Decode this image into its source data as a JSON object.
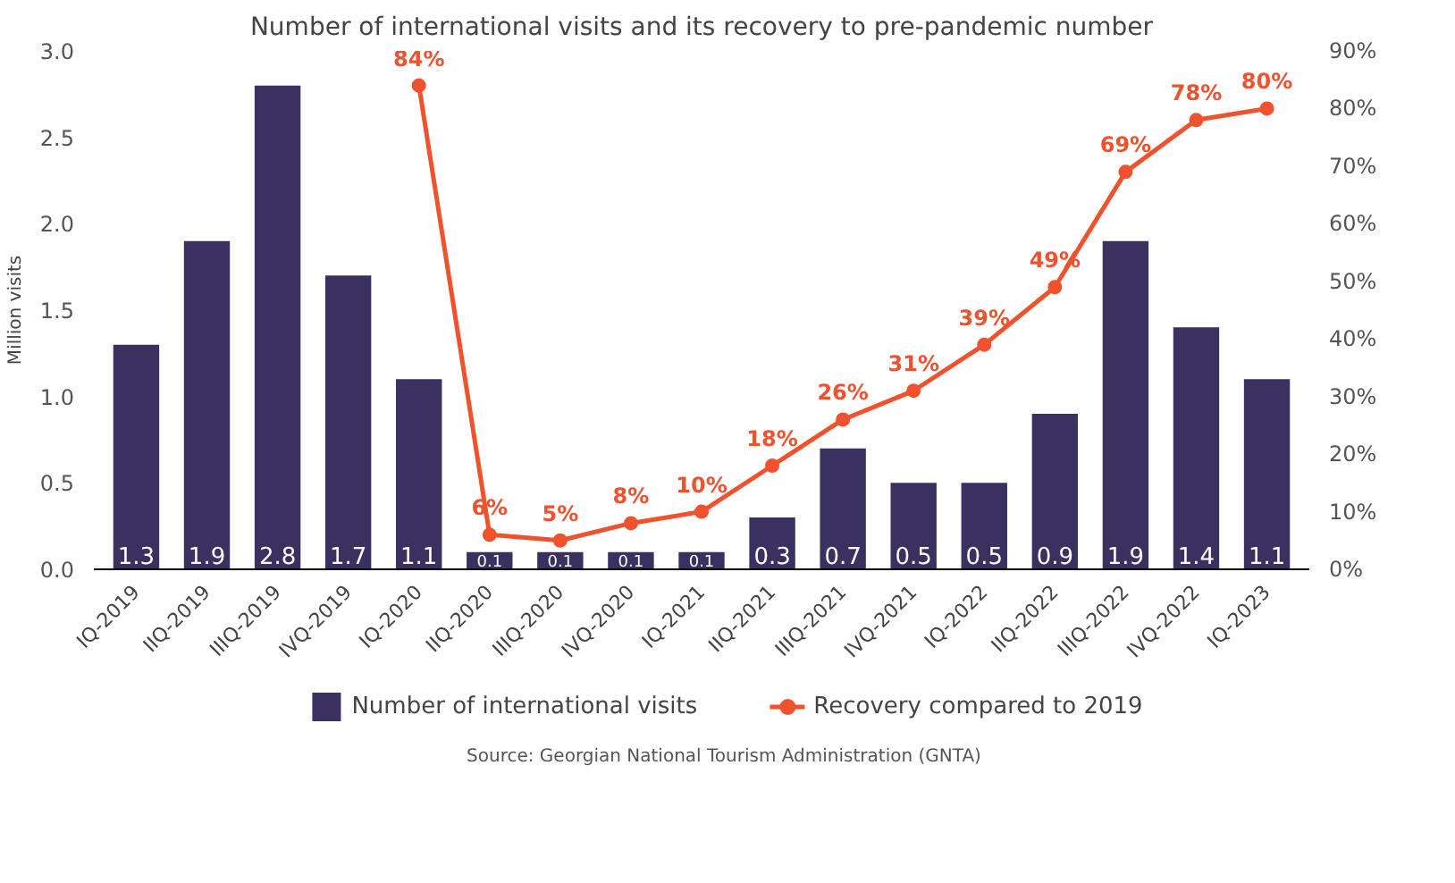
{
  "chart_data": {
    "type": "bar",
    "title": "Number of international visits and its recovery to pre-pandemic number",
    "ylabel": "Million visits",
    "categories": [
      "IQ-2019",
      "IIQ-2019",
      "IIIQ-2019",
      "IVQ-2019",
      "IQ-2020",
      "IIQ-2020",
      "IIIQ-2020",
      "IVQ-2020",
      "IQ-2021",
      "IIQ-2021",
      "IIIQ-2021",
      "IVQ-2021",
      "IQ-2022",
      "IIQ-2022",
      "IIIQ-2022",
      "IVQ-2022",
      "IQ-2023"
    ],
    "series": [
      {
        "name": "Number of international visits",
        "color": "#3b3160",
        "values": [
          1.3,
          1.9,
          2.8,
          1.7,
          1.1,
          0.1,
          0.1,
          0.1,
          0.1,
          0.3,
          0.7,
          0.5,
          0.5,
          0.9,
          1.9,
          1.4,
          1.1
        ],
        "value_labels": [
          "1.3",
          "1.9",
          "2.8",
          "1.7",
          "1.1",
          "0.1",
          "0.1",
          "0.1",
          "0.1",
          "0.3",
          "0.7",
          "0.5",
          "0.5",
          "0.9",
          "1.9",
          "1.4",
          "1.1"
        ]
      },
      {
        "name": "Recovery compared to 2019",
        "type": "line",
        "axis": "y2",
        "color": "#f0522d",
        "marker": "circle",
        "values": [
          null,
          null,
          null,
          null,
          84,
          6,
          5,
          8,
          10,
          18,
          26,
          31,
          39,
          49,
          69,
          78,
          80
        ],
        "value_labels": [
          null,
          null,
          null,
          null,
          "84%",
          "6%",
          "5%",
          "8%",
          "10%",
          "18%",
          "26%",
          "31%",
          "39%",
          "49%",
          "69%",
          "78%",
          "80%"
        ]
      }
    ],
    "ylim": [
      0,
      3
    ],
    "yticks": [
      {
        "value": 0,
        "label": "0.0"
      },
      {
        "value": 0.5,
        "label": "0.5"
      },
      {
        "value": 1,
        "label": "1.0"
      },
      {
        "value": 1.5,
        "label": "1.5"
      },
      {
        "value": 2,
        "label": "2.0"
      },
      {
        "value": 2.5,
        "label": "2.5"
      },
      {
        "value": 3,
        "label": "3.0"
      }
    ],
    "y2lim": [
      0,
      90
    ],
    "y2ticks": [
      {
        "value": 0,
        "label": "0%"
      },
      {
        "value": 10,
        "label": "10%"
      },
      {
        "value": 20,
        "label": "20%"
      },
      {
        "value": 30,
        "label": "30%"
      },
      {
        "value": 40,
        "label": "40%"
      },
      {
        "value": 50,
        "label": "50%"
      },
      {
        "value": 60,
        "label": "60%"
      },
      {
        "value": 70,
        "label": "70%"
      },
      {
        "value": 80,
        "label": "80%"
      },
      {
        "value": 90,
        "label": "90%"
      }
    ],
    "legend": "bottom",
    "annotations": [
      "Source: Georgian National Tourism Administration (GNTA)"
    ]
  }
}
